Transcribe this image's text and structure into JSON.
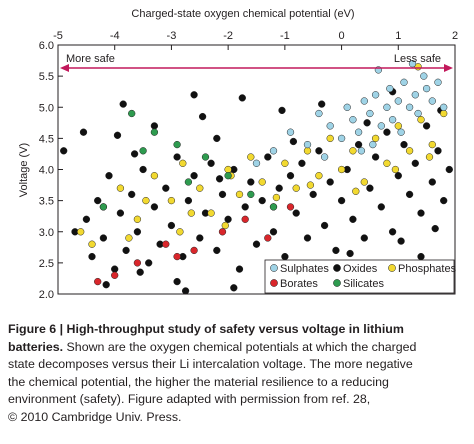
{
  "chart_data": {
    "type": "scatter",
    "title": "",
    "xlabel": "Charged-state oxygen chemical potential (eV)",
    "ylabel": "Voltage (V)",
    "xlim": [
      -5,
      2
    ],
    "ylim": [
      2.0,
      6.0
    ],
    "x_ticks": [
      "-5",
      "-4",
      "-3",
      "-2",
      "-1",
      "0",
      "1",
      "2"
    ],
    "y_ticks": [
      "2.0",
      "2.5",
      "3.0",
      "3.5",
      "4.0",
      "4.5",
      "5.0",
      "5.5",
      "6.0"
    ],
    "annotations": {
      "left": "More safe",
      "right": "Less safe"
    },
    "legend_position": "bottom-right",
    "series": [
      {
        "name": "Sulphates",
        "color": "#9fd3e6",
        "points": [
          [
            -1.2,
            4.3
          ],
          [
            -0.9,
            4.6
          ],
          [
            -0.6,
            4.4
          ],
          [
            -0.4,
            4.9
          ],
          [
            -0.2,
            4.7
          ],
          [
            0.0,
            4.5
          ],
          [
            0.1,
            5.0
          ],
          [
            0.2,
            4.8
          ],
          [
            0.3,
            4.6
          ],
          [
            0.4,
            5.1
          ],
          [
            0.5,
            4.9
          ],
          [
            0.55,
            4.4
          ],
          [
            0.6,
            5.2
          ],
          [
            0.7,
            4.7
          ],
          [
            0.8,
            5.0
          ],
          [
            0.85,
            5.3
          ],
          [
            0.9,
            4.8
          ],
          [
            1.0,
            5.1
          ],
          [
            1.05,
            4.6
          ],
          [
            1.1,
            5.4
          ],
          [
            1.2,
            5.0
          ],
          [
            1.3,
            5.2
          ],
          [
            1.35,
            4.9
          ],
          [
            1.45,
            5.5
          ],
          [
            1.5,
            5.3
          ],
          [
            1.6,
            5.1
          ],
          [
            1.7,
            5.4
          ],
          [
            1.8,
            5.0
          ],
          [
            -0.3,
            4.2
          ],
          [
            0.35,
            4.3
          ],
          [
            -1.5,
            4.1
          ],
          [
            0.65,
            5.6
          ],
          [
            1.25,
            5.7
          ]
        ]
      },
      {
        "name": "Oxides",
        "color": "#111111",
        "points": [
          [
            -4.9,
            4.3
          ],
          [
            -4.7,
            3.0
          ],
          [
            -4.5,
            3.2
          ],
          [
            -4.4,
            2.6
          ],
          [
            -4.3,
            3.5
          ],
          [
            -4.2,
            2.9
          ],
          [
            -4.1,
            3.9
          ],
          [
            -4.0,
            2.4
          ],
          [
            -3.9,
            3.3
          ],
          [
            -3.8,
            2.7
          ],
          [
            -3.7,
            3.6
          ],
          [
            -3.6,
            3.0
          ],
          [
            -3.5,
            4.0
          ],
          [
            -3.4,
            2.5
          ],
          [
            -3.3,
            3.4
          ],
          [
            -3.2,
            2.8
          ],
          [
            -3.1,
            3.7
          ],
          [
            -3.0,
            3.1
          ],
          [
            -2.9,
            4.2
          ],
          [
            -2.8,
            2.6
          ],
          [
            -2.7,
            3.5
          ],
          [
            -2.6,
            3.9
          ],
          [
            -2.5,
            2.9
          ],
          [
            -2.4,
            3.3
          ],
          [
            -2.3,
            4.1
          ],
          [
            -2.2,
            2.7
          ],
          [
            -2.1,
            3.6
          ],
          [
            -2.0,
            3.2
          ],
          [
            -1.9,
            4.0
          ],
          [
            -1.8,
            2.4
          ],
          [
            -1.7,
            3.4
          ],
          [
            -1.6,
            3.8
          ],
          [
            -1.5,
            2.8
          ],
          [
            -1.4,
            3.5
          ],
          [
            -1.3,
            4.2
          ],
          [
            -1.2,
            3.0
          ],
          [
            -1.1,
            3.7
          ],
          [
            -1.0,
            2.6
          ],
          [
            -0.9,
            3.9
          ],
          [
            -0.8,
            3.3
          ],
          [
            -0.7,
            4.1
          ],
          [
            -0.6,
            2.9
          ],
          [
            -0.5,
            3.6
          ],
          [
            -0.4,
            4.3
          ],
          [
            -0.3,
            3.1
          ],
          [
            -0.2,
            3.8
          ],
          [
            -0.1,
            2.7
          ],
          [
            0.0,
            3.5
          ],
          [
            0.1,
            4.0
          ],
          [
            0.2,
            3.2
          ],
          [
            0.3,
            4.4
          ],
          [
            0.4,
            2.9
          ],
          [
            0.5,
            3.7
          ],
          [
            0.6,
            4.2
          ],
          [
            0.7,
            3.4
          ],
          [
            0.8,
            4.6
          ],
          [
            0.9,
            3.0
          ],
          [
            1.0,
            3.9
          ],
          [
            1.1,
            4.4
          ],
          [
            1.2,
            3.6
          ],
          [
            1.3,
            4.1
          ],
          [
            1.4,
            3.3
          ],
          [
            1.5,
            4.7
          ],
          [
            1.6,
            3.8
          ],
          [
            1.7,
            4.3
          ],
          [
            1.8,
            3.5
          ],
          [
            1.9,
            4.0
          ],
          [
            -3.85,
            5.05
          ],
          [
            -2.6,
            5.2
          ],
          [
            -1.75,
            5.15
          ],
          [
            -2.2,
            4.5
          ],
          [
            -3.3,
            4.7
          ],
          [
            -2.9,
            2.2
          ],
          [
            -1.9,
            2.1
          ],
          [
            -0.7,
            2.3
          ],
          [
            0.6,
            2.4
          ],
          [
            1.4,
            2.6
          ],
          [
            -4.55,
            4.6
          ],
          [
            -3.95,
            4.55
          ],
          [
            -2.45,
            4.85
          ],
          [
            -1.05,
            4.95
          ],
          [
            -0.35,
            5.05
          ],
          [
            0.9,
            5.25
          ],
          [
            1.75,
            4.95
          ],
          [
            -4.15,
            2.15
          ],
          [
            -3.55,
            2.35
          ],
          [
            -2.75,
            2.05
          ],
          [
            -1.25,
            2.45
          ],
          [
            0.15,
            2.65
          ],
          [
            1.05,
            2.85
          ],
          [
            1.65,
            3.05
          ],
          [
            -3.65,
            4.25
          ],
          [
            -2.15,
            3.85
          ],
          [
            -0.85,
            4.45
          ],
          [
            0.45,
            4.75
          ]
        ]
      },
      {
        "name": "Phosphates",
        "color": "#f2d930",
        "points": [
          [
            -4.6,
            3.0
          ],
          [
            -4.2,
            3.4
          ],
          [
            -3.9,
            3.7
          ],
          [
            -3.6,
            3.2
          ],
          [
            -3.3,
            3.9
          ],
          [
            -3.0,
            3.5
          ],
          [
            -2.8,
            4.1
          ],
          [
            -2.5,
            3.7
          ],
          [
            -2.3,
            3.3
          ],
          [
            -2.0,
            4.0
          ],
          [
            -1.8,
            3.6
          ],
          [
            -1.6,
            4.2
          ],
          [
            -1.4,
            3.8
          ],
          [
            -1.2,
            3.4
          ],
          [
            -1.0,
            4.1
          ],
          [
            -0.8,
            3.7
          ],
          [
            -0.6,
            4.3
          ],
          [
            -0.4,
            3.9
          ],
          [
            -0.2,
            4.5
          ],
          [
            0.0,
            4.0
          ],
          [
            0.2,
            4.3
          ],
          [
            0.4,
            3.8
          ],
          [
            0.6,
            4.5
          ],
          [
            0.8,
            4.1
          ],
          [
            1.0,
            4.7
          ],
          [
            1.2,
            4.3
          ],
          [
            1.4,
            4.8
          ],
          [
            1.6,
            4.4
          ],
          [
            1.8,
            4.9
          ],
          [
            -3.45,
            3.5
          ],
          [
            -2.65,
            3.3
          ],
          [
            -1.95,
            3.9
          ],
          [
            -1.15,
            3.55
          ],
          [
            -0.55,
            3.75
          ],
          [
            0.25,
            3.65
          ],
          [
            0.95,
            4.0
          ],
          [
            1.55,
            4.2
          ],
          [
            -4.4,
            2.8
          ],
          [
            -3.75,
            2.9
          ],
          [
            -2.85,
            3.0
          ],
          [
            -2.05,
            3.1
          ],
          [
            1.35,
            5.65
          ]
        ]
      },
      {
        "name": "Borates",
        "color": "#d9262b",
        "points": [
          [
            -4.3,
            2.2
          ],
          [
            -3.6,
            2.5
          ],
          [
            -3.1,
            2.8
          ],
          [
            -2.6,
            2.7
          ],
          [
            -2.1,
            3.0
          ],
          [
            -1.7,
            3.2
          ],
          [
            -1.3,
            2.9
          ],
          [
            -0.9,
            3.4
          ],
          [
            -4.0,
            2.3
          ],
          [
            -2.9,
            2.6
          ]
        ]
      },
      {
        "name": "Silicates",
        "color": "#2e9b4f",
        "points": [
          [
            -3.7,
            4.9
          ],
          [
            -3.3,
            4.6
          ],
          [
            -2.9,
            4.4
          ],
          [
            -2.4,
            4.2
          ],
          [
            -2.0,
            3.9
          ],
          [
            -1.6,
            3.6
          ],
          [
            -1.2,
            3.4
          ],
          [
            -3.5,
            4.3
          ],
          [
            -2.7,
            3.8
          ],
          [
            -4.2,
            3.4
          ]
        ]
      }
    ]
  },
  "caption": {
    "figure_label": "Figure 6 | High-throughput study of safety versus voltage in lithium",
    "figure_label_cont": "batteries.",
    "line1": " Shown are the oxygen chemical potentials at which the charged",
    "line2": "state decomposes versus their Li intercalation voltage. The more negative",
    "line3": "the chemical potential, the higher the material resilience to a reducing",
    "line4": "environment (safety). Figure adapted with permission from ref. 28,",
    "line5": "© 2010 Cambridge Univ. Press."
  }
}
